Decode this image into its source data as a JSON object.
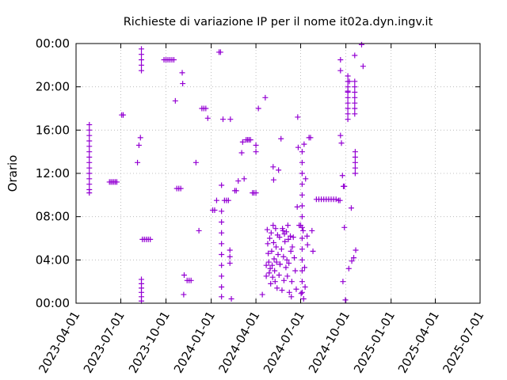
{
  "chart_data": {
    "type": "scatter",
    "title": "Richieste di variazione IP per il nome it02a.dyn.ingv.it",
    "xlabel": "",
    "ylabel": "Orario",
    "x_ticks": [
      "2023-04-01",
      "2023-07-01",
      "2023-10-01",
      "2024-01-01",
      "2024-04-01",
      "2024-07-01",
      "2024-10-01",
      "2025-01-01",
      "2025-04-01",
      "2025-07-01"
    ],
    "y_ticks": [
      "00:00",
      "04:00",
      "08:00",
      "12:00",
      "16:00",
      "20:00",
      "00:00"
    ],
    "xlim": [
      "2023-04-01",
      "2025-07-01"
    ],
    "ylim_hours": [
      0,
      24
    ],
    "marker": "+",
    "color": "#9400d3",
    "grid": "dotted",
    "points": [
      [
        "2023-04-28",
        16.5
      ],
      [
        "2023-04-28",
        16.0
      ],
      [
        "2023-04-28",
        15.5
      ],
      [
        "2023-04-28",
        15.0
      ],
      [
        "2023-04-28",
        14.5
      ],
      [
        "2023-04-28",
        14.0
      ],
      [
        "2023-04-28",
        13.5
      ],
      [
        "2023-04-28",
        13.0
      ],
      [
        "2023-04-28",
        12.5
      ],
      [
        "2023-04-28",
        12.0
      ],
      [
        "2023-04-28",
        11.5
      ],
      [
        "2023-04-28",
        11.0
      ],
      [
        "2023-04-28",
        10.5
      ],
      [
        "2023-04-28",
        10.2
      ],
      [
        "2023-06-08",
        11.2
      ],
      [
        "2023-06-11",
        11.2
      ],
      [
        "2023-06-14",
        11.2
      ],
      [
        "2023-06-17",
        11.2
      ],
      [
        "2023-06-20",
        11.2
      ],
      [
        "2023-06-23",
        11.2
      ],
      [
        "2023-07-03",
        17.4
      ],
      [
        "2023-07-06",
        17.4
      ],
      [
        "2023-08-04",
        13.0
      ],
      [
        "2023-08-07",
        14.6
      ],
      [
        "2023-08-10",
        15.3
      ],
      [
        "2023-08-12",
        23.5
      ],
      [
        "2023-08-12",
        23.0
      ],
      [
        "2023-08-12",
        22.5
      ],
      [
        "2023-08-12",
        22.0
      ],
      [
        "2023-08-12",
        21.5
      ],
      [
        "2023-08-12",
        2.2
      ],
      [
        "2023-08-12",
        1.8
      ],
      [
        "2023-08-12",
        1.4
      ],
      [
        "2023-08-12",
        1.0
      ],
      [
        "2023-08-12",
        0.6
      ],
      [
        "2023-08-12",
        0.2
      ],
      [
        "2023-08-14",
        5.9
      ],
      [
        "2023-08-18",
        5.9
      ],
      [
        "2023-08-22",
        5.9
      ],
      [
        "2023-08-26",
        5.9
      ],
      [
        "2023-08-30",
        5.9
      ],
      [
        "2023-09-27",
        22.5
      ],
      [
        "2023-10-01",
        22.5
      ],
      [
        "2023-10-05",
        22.5
      ],
      [
        "2023-10-09",
        22.5
      ],
      [
        "2023-10-13",
        22.5
      ],
      [
        "2023-10-17",
        22.5
      ],
      [
        "2023-10-20",
        18.7
      ],
      [
        "2023-10-23",
        10.6
      ],
      [
        "2023-10-27",
        10.6
      ],
      [
        "2023-10-31",
        10.6
      ],
      [
        "2023-11-03",
        21.3
      ],
      [
        "2023-11-04",
        20.3
      ],
      [
        "2023-11-06",
        0.8
      ],
      [
        "2023-11-07",
        2.6
      ],
      [
        "2023-11-13",
        2.1
      ],
      [
        "2023-11-17",
        2.1
      ],
      [
        "2023-11-21",
        2.1
      ],
      [
        "2023-12-01",
        13.0
      ],
      [
        "2023-12-07",
        6.7
      ],
      [
        "2023-12-13",
        18.0
      ],
      [
        "2023-12-17",
        18.0
      ],
      [
        "2023-12-21",
        18.0
      ],
      [
        "2023-12-25",
        17.1
      ],
      [
        "2024-01-04",
        8.6
      ],
      [
        "2024-01-08",
        8.6
      ],
      [
        "2024-01-12",
        9.5
      ],
      [
        "2024-01-17",
        23.2
      ],
      [
        "2024-01-20",
        23.2
      ],
      [
        "2024-01-22",
        8.5
      ],
      [
        "2024-01-22",
        7.5
      ],
      [
        "2024-01-22",
        6.5
      ],
      [
        "2024-01-22",
        5.5
      ],
      [
        "2024-01-22",
        4.5
      ],
      [
        "2024-01-22",
        3.5
      ],
      [
        "2024-01-22",
        2.5
      ],
      [
        "2024-01-22",
        1.5
      ],
      [
        "2024-01-22",
        0.6
      ],
      [
        "2024-01-22",
        10.9
      ],
      [
        "2024-01-25",
        17.0
      ],
      [
        "2024-01-28",
        9.5
      ],
      [
        "2024-02-01",
        9.5
      ],
      [
        "2024-02-05",
        9.5
      ],
      [
        "2024-02-08",
        4.9
      ],
      [
        "2024-02-08",
        4.3
      ],
      [
        "2024-02-08",
        3.7
      ],
      [
        "2024-02-09",
        17.0
      ],
      [
        "2024-02-11",
        0.4
      ],
      [
        "2024-02-18",
        10.4
      ],
      [
        "2024-02-21",
        10.4
      ],
      [
        "2024-02-25",
        11.3
      ],
      [
        "2024-03-03",
        13.9
      ],
      [
        "2024-03-05",
        14.9
      ],
      [
        "2024-03-08",
        11.5
      ],
      [
        "2024-03-12",
        15.1
      ],
      [
        "2024-03-15",
        15.1
      ],
      [
        "2024-03-18",
        15.1
      ],
      [
        "2024-03-21",
        15.1
      ],
      [
        "2024-03-25",
        10.2
      ],
      [
        "2024-03-28",
        10.2
      ],
      [
        "2024-04-01",
        10.2
      ],
      [
        "2024-04-01",
        14.6
      ],
      [
        "2024-04-01",
        14.0
      ],
      [
        "2024-04-06",
        18.0
      ],
      [
        "2024-04-14",
        0.8
      ],
      [
        "2024-04-20",
        19.0
      ],
      [
        "2024-04-22",
        3.5
      ],
      [
        "2024-04-22",
        2.5
      ],
      [
        "2024-04-24",
        6.8
      ],
      [
        "2024-04-25",
        5.5
      ],
      [
        "2024-04-26",
        4.6
      ],
      [
        "2024-04-27",
        3.8
      ],
      [
        "2024-04-28",
        2.8
      ],
      [
        "2024-04-29",
        6.0
      ],
      [
        "2024-04-30",
        3.2
      ],
      [
        "2024-05-01",
        1.8
      ],
      [
        "2024-05-02",
        6.5
      ],
      [
        "2024-05-03",
        4.8
      ],
      [
        "2024-05-04",
        3.5
      ],
      [
        "2024-05-05",
        2.4
      ],
      [
        "2024-05-06",
        12.6
      ],
      [
        "2024-05-06",
        7.2
      ],
      [
        "2024-05-07",
        11.4
      ],
      [
        "2024-05-07",
        5.6
      ],
      [
        "2024-05-08",
        4.1
      ],
      [
        "2024-05-09",
        3.0
      ],
      [
        "2024-05-10",
        2.0
      ],
      [
        "2024-05-11",
        6.9
      ],
      [
        "2024-05-12",
        5.2
      ],
      [
        "2024-05-13",
        3.8
      ],
      [
        "2024-05-14",
        1.4
      ],
      [
        "2024-05-15",
        6.3
      ],
      [
        "2024-05-16",
        4.5
      ],
      [
        "2024-05-17",
        12.3
      ],
      [
        "2024-05-18",
        2.6
      ],
      [
        "2024-05-19",
        6.1
      ],
      [
        "2024-05-20",
        3.6
      ],
      [
        "2024-05-20",
        3.6
      ],
      [
        "2024-05-22",
        15.2
      ],
      [
        "2024-05-23",
        5.0
      ],
      [
        "2024-05-24",
        1.2
      ],
      [
        "2024-05-25",
        6.9
      ],
      [
        "2024-05-26",
        6.7
      ],
      [
        "2024-05-27",
        4.3
      ],
      [
        "2024-05-28",
        2.1
      ],
      [
        "2024-05-29",
        6.4
      ],
      [
        "2024-05-30",
        5.7
      ],
      [
        "2024-06-01",
        3.3
      ],
      [
        "2024-06-02",
        6.6
      ],
      [
        "2024-06-03",
        4.0
      ],
      [
        "2024-06-04",
        2.5
      ],
      [
        "2024-06-05",
        7.2
      ],
      [
        "2024-06-06",
        5.9
      ],
      [
        "2024-06-07",
        3.7
      ],
      [
        "2024-06-08",
        1.0
      ],
      [
        "2024-06-10",
        6.2
      ],
      [
        "2024-06-11",
        4.8
      ],
      [
        "2024-06-12",
        0.6
      ],
      [
        "2024-06-13",
        2.0
      ],
      [
        "2024-06-14",
        5.2
      ],
      [
        "2024-06-16",
        6.1
      ],
      [
        "2024-06-18",
        4.2
      ],
      [
        "2024-06-20",
        3.0
      ],
      [
        "2024-06-22",
        1.3
      ],
      [
        "2024-06-24",
        8.9
      ],
      [
        "2024-06-25",
        17.2
      ],
      [
        "2024-06-26",
        14.4
      ],
      [
        "2024-06-28",
        7.2
      ],
      [
        "2024-07-01",
        7.2
      ],
      [
        "2024-07-02",
        0.9
      ],
      [
        "2024-07-04",
        14.0
      ],
      [
        "2024-07-04",
        13.0
      ],
      [
        "2024-07-04",
        12.0
      ],
      [
        "2024-07-04",
        11.0
      ],
      [
        "2024-07-04",
        10.0
      ],
      [
        "2024-07-04",
        9.0
      ],
      [
        "2024-07-04",
        8.0
      ],
      [
        "2024-07-04",
        7.0
      ],
      [
        "2024-07-04",
        6.0
      ],
      [
        "2024-07-04",
        5.0
      ],
      [
        "2024-07-04",
        4.0
      ],
      [
        "2024-07-04",
        3.0
      ],
      [
        "2024-07-04",
        2.0
      ],
      [
        "2024-07-04",
        1.0
      ],
      [
        "2024-07-06",
        6.7
      ],
      [
        "2024-07-07",
        0.4
      ],
      [
        "2024-07-08",
        14.7
      ],
      [
        "2024-07-09",
        3.3
      ],
      [
        "2024-07-10",
        1.5
      ],
      [
        "2024-07-11",
        11.5
      ],
      [
        "2024-07-14",
        6.2
      ],
      [
        "2024-07-15",
        5.4
      ],
      [
        "2024-07-18",
        15.3
      ],
      [
        "2024-07-21",
        15.3
      ],
      [
        "2024-07-24",
        6.7
      ],
      [
        "2024-07-26",
        4.8
      ],
      [
        "2024-08-02",
        9.6
      ],
      [
        "2024-08-07",
        9.6
      ],
      [
        "2024-08-12",
        9.6
      ],
      [
        "2024-08-17",
        9.6
      ],
      [
        "2024-08-22",
        9.6
      ],
      [
        "2024-08-27",
        9.6
      ],
      [
        "2024-09-01",
        9.6
      ],
      [
        "2024-09-06",
        9.6
      ],
      [
        "2024-09-11",
        9.6
      ],
      [
        "2024-09-16",
        9.5
      ],
      [
        "2024-09-19",
        9.5
      ],
      [
        "2024-09-20",
        22.5
      ],
      [
        "2024-09-20",
        21.5
      ],
      [
        "2024-09-20",
        15.5
      ],
      [
        "2024-09-22",
        14.8
      ],
      [
        "2024-09-24",
        11.8
      ],
      [
        "2024-09-26",
        10.8
      ],
      [
        "2024-09-28",
        10.8
      ],
      [
        "2024-09-25",
        2.0
      ],
      [
        "2024-09-28",
        7.0
      ],
      [
        "2024-09-30",
        0.3
      ],
      [
        "2024-10-05",
        21.0
      ],
      [
        "2024-10-05",
        20.5
      ],
      [
        "2024-10-05",
        20.0
      ],
      [
        "2024-10-05",
        19.5
      ],
      [
        "2024-10-05",
        19.0
      ],
      [
        "2024-10-05",
        18.5
      ],
      [
        "2024-10-05",
        18.0
      ],
      [
        "2024-10-05",
        17.5
      ],
      [
        "2024-10-05",
        17.0
      ],
      [
        "2024-10-05",
        19.6
      ],
      [
        "2024-10-07",
        3.2
      ],
      [
        "2024-10-08",
        20.5
      ],
      [
        "2024-10-12",
        8.8
      ],
      [
        "2024-10-13",
        3.9
      ],
      [
        "2024-10-17",
        4.2
      ],
      [
        "2024-10-19",
        20.5
      ],
      [
        "2024-10-19",
        20.0
      ],
      [
        "2024-10-19",
        19.5
      ],
      [
        "2024-10-19",
        19.0
      ],
      [
        "2024-10-19",
        18.5
      ],
      [
        "2024-10-19",
        18.0
      ],
      [
        "2024-10-19",
        17.5
      ],
      [
        "2024-10-20",
        14.0
      ],
      [
        "2024-10-20",
        13.5
      ],
      [
        "2024-10-20",
        13.0
      ],
      [
        "2024-10-20",
        12.5
      ],
      [
        "2024-10-20",
        12.0
      ],
      [
        "2024-10-19",
        22.9
      ],
      [
        "2024-10-21",
        4.9
      ],
      [
        "2024-11-02",
        23.9
      ],
      [
        "2024-11-05",
        21.9
      ]
    ]
  }
}
